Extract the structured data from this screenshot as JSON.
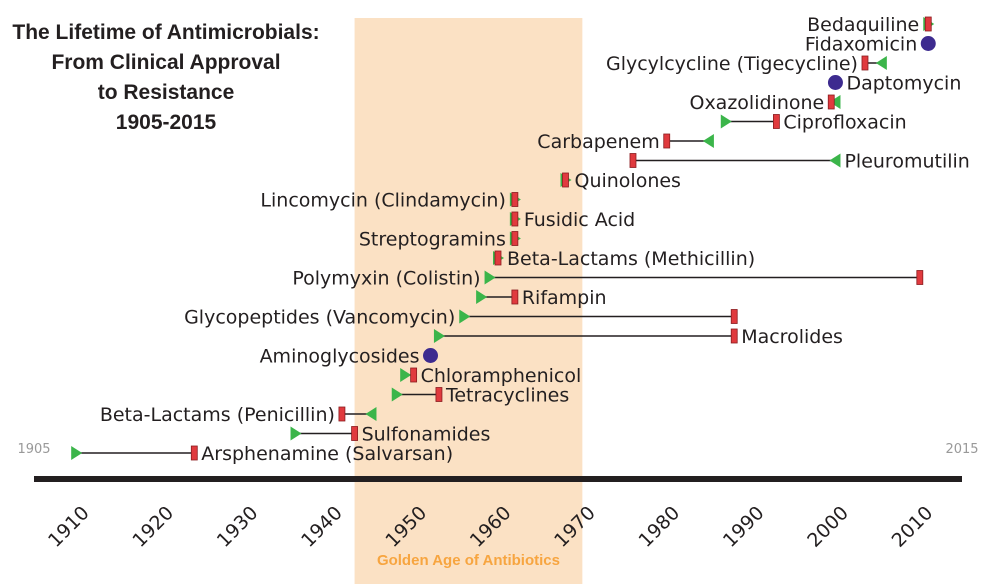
{
  "chart_data": {
    "type": "timeline",
    "title_lines": [
      "The Lifetime of Antimicrobials:",
      "From Clinical Approval",
      "to Resistance",
      "1905-2015"
    ],
    "x_range": [
      1905,
      2015
    ],
    "start_label": "1905",
    "end_label": "2015",
    "ticks": [
      1910,
      1920,
      1930,
      1940,
      1950,
      1960,
      1970,
      1980,
      1990,
      2000,
      2010
    ],
    "band": {
      "start": 1943,
      "end": 1970,
      "label": "Golden Age of Antibiotics",
      "color": "#fbe1c4",
      "label_color": "#f7a540"
    },
    "colors": {
      "approval": "#3bb54a",
      "resistance": "#e03a3e",
      "no_resistance": "#3d2b8f",
      "axis": "#231f20",
      "connector": "#231f20"
    },
    "entries": [
      {
        "name": "Bedaquiline",
        "approval": 2011,
        "resistance": 2011,
        "label_side": "left"
      },
      {
        "name": "Fidaxomicin",
        "approval": 2011,
        "resistance": null,
        "label_side": "left"
      },
      {
        "name": "Glycylcycline (Tigecycline)",
        "approval": 2005.5,
        "resistance": 2003.5,
        "label_side": "left"
      },
      {
        "name": "Daptomycin",
        "approval": 2000,
        "resistance": null,
        "label_side": "right"
      },
      {
        "name": "Oxazolidinone",
        "approval": 2000,
        "resistance": 1999.5,
        "label_side": "left"
      },
      {
        "name": "Ciprofloxacin",
        "approval": 1987,
        "resistance": 1993,
        "label_side": "right"
      },
      {
        "name": "Carbapenem",
        "approval": 1985,
        "resistance": 1980,
        "label_side": "left"
      },
      {
        "name": "Pleuromutilin",
        "approval": 2000,
        "resistance": 1976,
        "label_side": "right"
      },
      {
        "name": "Quinolones",
        "approval": 1968,
        "resistance": 1968,
        "label_side": "right"
      },
      {
        "name": "Lincomycin (Clindamycin)",
        "approval": 1962,
        "resistance": 1962,
        "label_side": "left"
      },
      {
        "name": "Fusidic Acid",
        "approval": 1962,
        "resistance": 1962,
        "label_side": "right"
      },
      {
        "name": "Streptogramins",
        "approval": 1962,
        "resistance": 1962,
        "label_side": "left"
      },
      {
        "name": "Beta-Lactams (Methicillin)",
        "approval": 1960,
        "resistance": 1960,
        "label_side": "right"
      },
      {
        "name": "Polymyxin (Colistin)",
        "approval": 1959,
        "resistance": 2010,
        "label_side": "left"
      },
      {
        "name": "Rifampin",
        "approval": 1958,
        "resistance": 1962,
        "label_side": "right"
      },
      {
        "name": "Glycopeptides (Vancomycin)",
        "approval": 1956,
        "resistance": 1988,
        "label_side": "left"
      },
      {
        "name": "Macrolides",
        "approval": 1953,
        "resistance": 1988,
        "label_side": "right"
      },
      {
        "name": "Aminoglycosides",
        "approval": 1952,
        "resistance": null,
        "label_side": "left"
      },
      {
        "name": "Chloramphenicol",
        "approval": 1949,
        "resistance": 1950,
        "label_side": "right"
      },
      {
        "name": "Tetracyclines",
        "approval": 1948,
        "resistance": 1953,
        "label_side": "right"
      },
      {
        "name": "Beta-Lactams (Penicillin)",
        "approval": 1945,
        "resistance": 1941.5,
        "label_side": "left"
      },
      {
        "name": "Sulfonamides",
        "approval": 1936,
        "resistance": 1943,
        "label_side": "right"
      },
      {
        "name": "Arsphenamine (Salvarsan)",
        "approval": 1910,
        "resistance": 1924,
        "label_side": "right"
      }
    ]
  }
}
